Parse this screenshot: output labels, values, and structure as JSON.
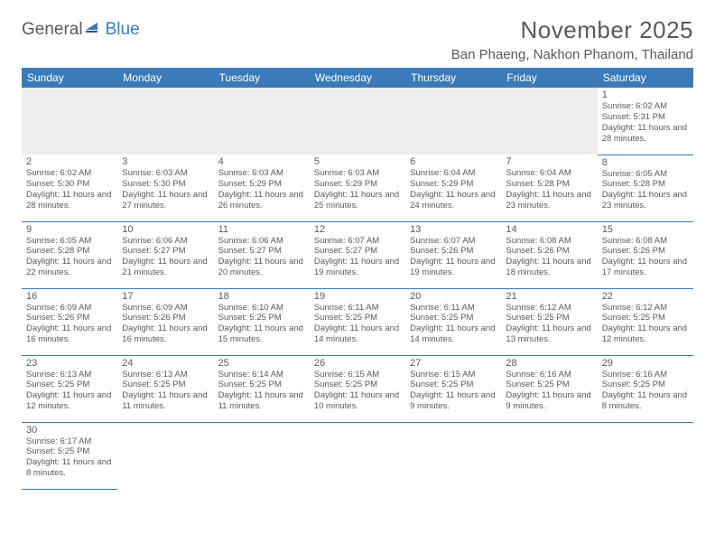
{
  "brand": {
    "word1": "General",
    "word2": "Blue"
  },
  "title": "November 2025",
  "location": "Ban Phaeng, Nakhon Phanom, Thailand",
  "dayNames": [
    "Sunday",
    "Monday",
    "Tuesday",
    "Wednesday",
    "Thursday",
    "Friday",
    "Saturday"
  ],
  "colors": {
    "header_bg": "#3a7ab8",
    "text": "#5a5a5a",
    "blank_bg": "#ededed"
  },
  "typography": {
    "title_fontsize": 26,
    "location_fontsize": 15,
    "header_fontsize": 12,
    "daynum_fontsize": 11,
    "details_fontsize": 9.5
  },
  "grid": {
    "firstDayOffset": 6,
    "days": [
      {
        "n": "1",
        "sunrise": "Sunrise: 6:02 AM",
        "sunset": "Sunset: 5:31 PM",
        "daylight": "Daylight: 11 hours and 28 minutes."
      },
      {
        "n": "2",
        "sunrise": "Sunrise: 6:02 AM",
        "sunset": "Sunset: 5:30 PM",
        "daylight": "Daylight: 11 hours and 28 minutes."
      },
      {
        "n": "3",
        "sunrise": "Sunrise: 6:03 AM",
        "sunset": "Sunset: 5:30 PM",
        "daylight": "Daylight: 11 hours and 27 minutes."
      },
      {
        "n": "4",
        "sunrise": "Sunrise: 6:03 AM",
        "sunset": "Sunset: 5:29 PM",
        "daylight": "Daylight: 11 hours and 26 minutes."
      },
      {
        "n": "5",
        "sunrise": "Sunrise: 6:03 AM",
        "sunset": "Sunset: 5:29 PM",
        "daylight": "Daylight: 11 hours and 25 minutes."
      },
      {
        "n": "6",
        "sunrise": "Sunrise: 6:04 AM",
        "sunset": "Sunset: 5:29 PM",
        "daylight": "Daylight: 11 hours and 24 minutes."
      },
      {
        "n": "7",
        "sunrise": "Sunrise: 6:04 AM",
        "sunset": "Sunset: 5:28 PM",
        "daylight": "Daylight: 11 hours and 23 minutes."
      },
      {
        "n": "8",
        "sunrise": "Sunrise: 6:05 AM",
        "sunset": "Sunset: 5:28 PM",
        "daylight": "Daylight: 11 hours and 23 minutes."
      },
      {
        "n": "9",
        "sunrise": "Sunrise: 6:05 AM",
        "sunset": "Sunset: 5:28 PM",
        "daylight": "Daylight: 11 hours and 22 minutes."
      },
      {
        "n": "10",
        "sunrise": "Sunrise: 6:06 AM",
        "sunset": "Sunset: 5:27 PM",
        "daylight": "Daylight: 11 hours and 21 minutes."
      },
      {
        "n": "11",
        "sunrise": "Sunrise: 6:06 AM",
        "sunset": "Sunset: 5:27 PM",
        "daylight": "Daylight: 11 hours and 20 minutes."
      },
      {
        "n": "12",
        "sunrise": "Sunrise: 6:07 AM",
        "sunset": "Sunset: 5:27 PM",
        "daylight": "Daylight: 11 hours and 19 minutes."
      },
      {
        "n": "13",
        "sunrise": "Sunrise: 6:07 AM",
        "sunset": "Sunset: 5:26 PM",
        "daylight": "Daylight: 11 hours and 19 minutes."
      },
      {
        "n": "14",
        "sunrise": "Sunrise: 6:08 AM",
        "sunset": "Sunset: 5:26 PM",
        "daylight": "Daylight: 11 hours and 18 minutes."
      },
      {
        "n": "15",
        "sunrise": "Sunrise: 6:08 AM",
        "sunset": "Sunset: 5:26 PM",
        "daylight": "Daylight: 11 hours and 17 minutes."
      },
      {
        "n": "16",
        "sunrise": "Sunrise: 6:09 AM",
        "sunset": "Sunset: 5:26 PM",
        "daylight": "Daylight: 11 hours and 16 minutes."
      },
      {
        "n": "17",
        "sunrise": "Sunrise: 6:09 AM",
        "sunset": "Sunset: 5:26 PM",
        "daylight": "Daylight: 11 hours and 16 minutes."
      },
      {
        "n": "18",
        "sunrise": "Sunrise: 6:10 AM",
        "sunset": "Sunset: 5:25 PM",
        "daylight": "Daylight: 11 hours and 15 minutes."
      },
      {
        "n": "19",
        "sunrise": "Sunrise: 6:11 AM",
        "sunset": "Sunset: 5:25 PM",
        "daylight": "Daylight: 11 hours and 14 minutes."
      },
      {
        "n": "20",
        "sunrise": "Sunrise: 6:11 AM",
        "sunset": "Sunset: 5:25 PM",
        "daylight": "Daylight: 11 hours and 14 minutes."
      },
      {
        "n": "21",
        "sunrise": "Sunrise: 6:12 AM",
        "sunset": "Sunset: 5:25 PM",
        "daylight": "Daylight: 11 hours and 13 minutes."
      },
      {
        "n": "22",
        "sunrise": "Sunrise: 6:12 AM",
        "sunset": "Sunset: 5:25 PM",
        "daylight": "Daylight: 11 hours and 12 minutes."
      },
      {
        "n": "23",
        "sunrise": "Sunrise: 6:13 AM",
        "sunset": "Sunset: 5:25 PM",
        "daylight": "Daylight: 11 hours and 12 minutes."
      },
      {
        "n": "24",
        "sunrise": "Sunrise: 6:13 AM",
        "sunset": "Sunset: 5:25 PM",
        "daylight": "Daylight: 11 hours and 11 minutes."
      },
      {
        "n": "25",
        "sunrise": "Sunrise: 6:14 AM",
        "sunset": "Sunset: 5:25 PM",
        "daylight": "Daylight: 11 hours and 11 minutes."
      },
      {
        "n": "26",
        "sunrise": "Sunrise: 6:15 AM",
        "sunset": "Sunset: 5:25 PM",
        "daylight": "Daylight: 11 hours and 10 minutes."
      },
      {
        "n": "27",
        "sunrise": "Sunrise: 6:15 AM",
        "sunset": "Sunset: 5:25 PM",
        "daylight": "Daylight: 11 hours and 9 minutes."
      },
      {
        "n": "28",
        "sunrise": "Sunrise: 6:16 AM",
        "sunset": "Sunset: 5:25 PM",
        "daylight": "Daylight: 11 hours and 9 minutes."
      },
      {
        "n": "29",
        "sunrise": "Sunrise: 6:16 AM",
        "sunset": "Sunset: 5:25 PM",
        "daylight": "Daylight: 11 hours and 8 minutes."
      },
      {
        "n": "30",
        "sunrise": "Sunrise: 6:17 AM",
        "sunset": "Sunset: 5:25 PM",
        "daylight": "Daylight: 11 hours and 8 minutes."
      }
    ]
  }
}
